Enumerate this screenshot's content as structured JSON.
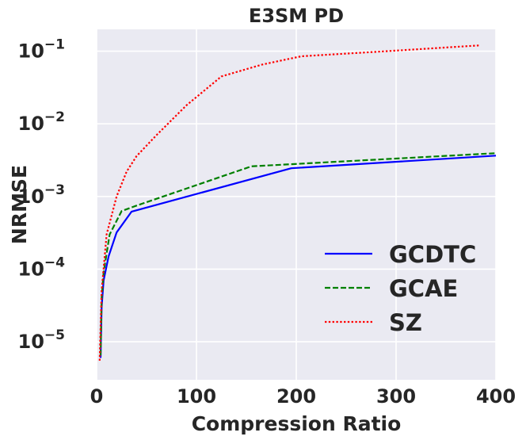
{
  "chart_data": {
    "type": "line",
    "title": "E3SM PD",
    "xlabel": "Compression Ratio",
    "ylabel": "NRMSE",
    "xlim": [
      0,
      400
    ],
    "ylim": [
      3e-06,
      0.2
    ],
    "yscale": "log",
    "grid": true,
    "legend_position": "lower-right",
    "x_ticks": [
      {
        "value": 0,
        "label": "0"
      },
      {
        "value": 100,
        "label": "100"
      },
      {
        "value": 200,
        "label": "200"
      },
      {
        "value": 300,
        "label": "300"
      },
      {
        "value": 400,
        "label": "400"
      }
    ],
    "y_ticks": [
      {
        "value": 1e-05,
        "base": "10",
        "exp": "−5"
      },
      {
        "value": 0.0001,
        "base": "10",
        "exp": "−4"
      },
      {
        "value": 0.001,
        "base": "10",
        "exp": "−3"
      },
      {
        "value": 0.01,
        "base": "10",
        "exp": "−2"
      },
      {
        "value": 0.1,
        "base": "10",
        "exp": "−1"
      }
    ],
    "series": [
      {
        "name": "GCDTC",
        "color": "#0000ff",
        "dash": "solid",
        "points": [
          [
            4,
            6e-06
          ],
          [
            5,
            3e-05
          ],
          [
            7,
            7e-05
          ],
          [
            12,
            0.00015
          ],
          [
            20,
            0.00032
          ],
          [
            35,
            0.00062
          ],
          [
            195,
            0.00245
          ],
          [
            400,
            0.00365
          ]
        ]
      },
      {
        "name": "GCAE",
        "color": "#008000",
        "dash": "dashed",
        "points": [
          [
            4,
            6.5e-06
          ],
          [
            5,
            4e-05
          ],
          [
            7,
            9e-05
          ],
          [
            13,
            0.0003
          ],
          [
            25,
            0.00063
          ],
          [
            40,
            0.00075
          ],
          [
            155,
            0.0026
          ],
          [
            400,
            0.00395
          ]
        ]
      },
      {
        "name": "SZ",
        "color": "#ff0000",
        "dash": "dotted",
        "points": [
          [
            3,
            5.5e-06
          ],
          [
            5,
            5e-05
          ],
          [
            10,
            0.0003
          ],
          [
            20,
            0.001
          ],
          [
            30,
            0.0022
          ],
          [
            40,
            0.0036
          ],
          [
            60,
            0.007
          ],
          [
            90,
            0.018
          ],
          [
            125,
            0.045
          ],
          [
            165,
            0.065
          ],
          [
            205,
            0.085
          ],
          [
            290,
            0.1
          ],
          [
            383,
            0.12
          ]
        ]
      }
    ]
  }
}
